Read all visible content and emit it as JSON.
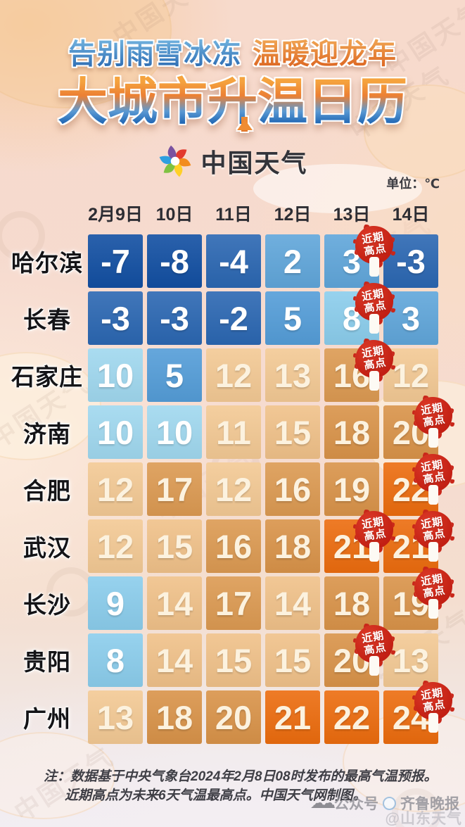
{
  "header": {
    "subtitle_blue": "告别雨雪冰冻",
    "subtitle_orange": "温暖迎龙年",
    "title": "大城市升温日历",
    "brand": "中国天气",
    "unit": "单位：℃"
  },
  "table": {
    "badge_label": [
      "近期",
      "高点"
    ],
    "badge_cols": [
      [
        4
      ],
      [
        4
      ],
      [
        4
      ],
      [
        5
      ],
      [
        5
      ],
      [
        4,
        5
      ],
      [
        5
      ],
      [
        4
      ],
      [
        5
      ]
    ],
    "color_scale": [
      {
        "max": -5,
        "color": "#124fa2"
      },
      {
        "max": -1,
        "color": "#2b67b2"
      },
      {
        "max": 4,
        "color": "#60a6da"
      },
      {
        "max": 6,
        "color": "#549dd8"
      },
      {
        "max": 9,
        "color": "#8bcdec"
      },
      {
        "max": 10,
        "color": "#a0d8ef"
      },
      {
        "max": 13,
        "color": "#f3c994"
      },
      {
        "max": 15,
        "color": "#f0c189"
      },
      {
        "max": 17,
        "color": "#dc9a52"
      },
      {
        "max": 20,
        "color": "#d99349"
      },
      {
        "max": 99,
        "color": "#ec6c0e"
      }
    ],
    "cell_text_cold": "#ffffff",
    "cell_text_warm": "#fcf2df",
    "badge_color": "#c9271a"
  },
  "chart_data": {
    "type": "heatmap",
    "title": "大城市升温日历",
    "subtitle": "告别雨雪冰冻 温暖迎龙年",
    "unit": "°C",
    "x": [
      "2月9日",
      "10日",
      "11日",
      "12日",
      "13日",
      "14日"
    ],
    "series": [
      {
        "name": "哈尔滨",
        "values": [
          -7,
          -8,
          -4,
          2,
          3,
          -3
        ],
        "recent_high": "13日"
      },
      {
        "name": "长春",
        "values": [
          -3,
          -3,
          -2,
          5,
          8,
          3
        ],
        "recent_high": "13日"
      },
      {
        "name": "石家庄",
        "values": [
          10,
          5,
          12,
          13,
          16,
          12
        ],
        "recent_high": "13日"
      },
      {
        "name": "济南",
        "values": [
          10,
          10,
          11,
          15,
          18,
          20
        ],
        "recent_high": "14日"
      },
      {
        "name": "合肥",
        "values": [
          12,
          17,
          12,
          16,
          19,
          22
        ],
        "recent_high": "14日"
      },
      {
        "name": "武汉",
        "values": [
          12,
          15,
          16,
          18,
          21,
          21
        ],
        "recent_high": "13日、14日"
      },
      {
        "name": "长沙",
        "values": [
          9,
          14,
          17,
          14,
          18,
          19
        ],
        "recent_high": "14日"
      },
      {
        "name": "贵阳",
        "values": [
          8,
          14,
          15,
          15,
          20,
          13
        ],
        "recent_high": "13日"
      },
      {
        "name": "广州",
        "values": [
          13,
          18,
          20,
          21,
          22,
          24
        ],
        "recent_high": "14日"
      }
    ],
    "annotation_label": "近期高点"
  },
  "footer": {
    "note_line1": "注：数据基于中央气象台2024年2月8日08时发布的最高气温预报。",
    "note_line2": "近期高点为未来6天气温最高点。中国天气网制图。",
    "public_account_label": "公众号",
    "public_account_name": "齐鲁晚报",
    "weibo_watermark": "@山东天气"
  },
  "watermark": {
    "text": "中国天气"
  }
}
